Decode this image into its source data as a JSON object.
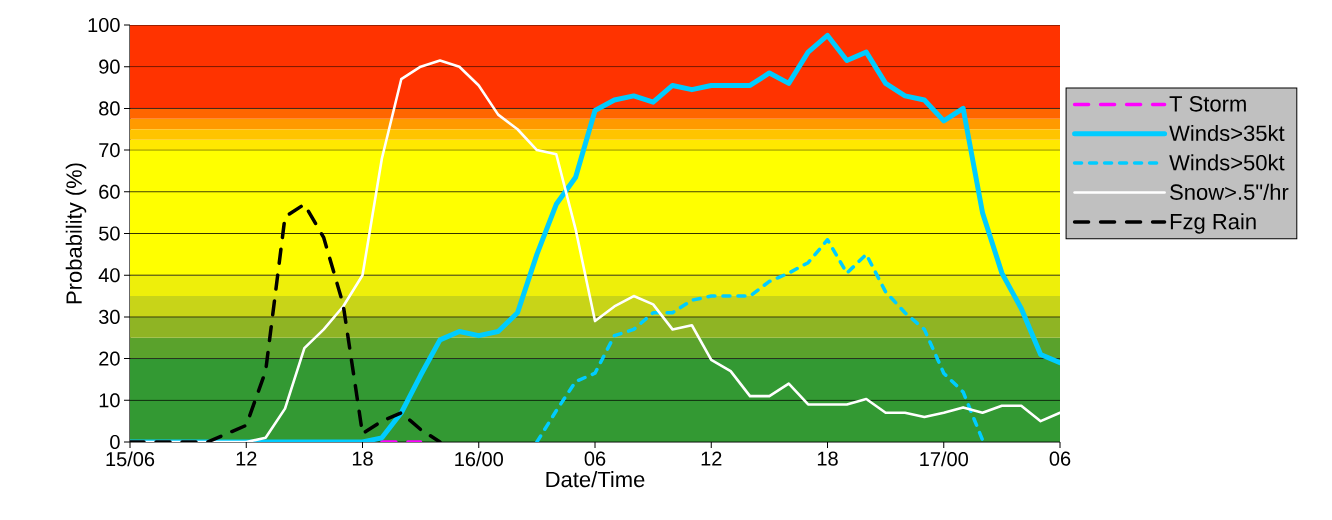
{
  "chart_data": {
    "type": "line",
    "xlabel": "Date/Time",
    "ylabel": "Probability (%)",
    "categories": [
      "15/06",
      null,
      null,
      null,
      null,
      null,
      "12",
      null,
      null,
      null,
      null,
      null,
      "18",
      null,
      null,
      null,
      null,
      null,
      "16/00",
      null,
      null,
      null,
      null,
      null,
      "06",
      null,
      null,
      null,
      null,
      null,
      "12",
      null,
      null,
      null,
      null,
      null,
      "18",
      null,
      null,
      null,
      null,
      null,
      "17/00",
      null,
      null,
      null,
      null,
      null,
      "06"
    ],
    "ylim": [
      0,
      100
    ],
    "yticks": [
      0,
      10,
      20,
      30,
      40,
      50,
      60,
      70,
      80,
      90,
      100
    ],
    "grid": "y",
    "legend": "right",
    "marker": "none",
    "bands": [
      {
        "axis": "y",
        "from": 0,
        "to": 20,
        "color": "#339933"
      },
      {
        "axis": "y",
        "from": 20,
        "to": 25,
        "color": "#5aa22c"
      },
      {
        "axis": "y",
        "from": 25,
        "to": 30,
        "color": "#8fb424"
      },
      {
        "axis": "y",
        "from": 30,
        "to": 35,
        "color": "#c8d418"
      },
      {
        "axis": "y",
        "from": 35,
        "to": 40,
        "color": "#eeef0a"
      },
      {
        "axis": "y",
        "from": 40,
        "to": 70,
        "color": "#ffff00"
      },
      {
        "axis": "y",
        "from": 70,
        "to": 72.5,
        "color": "#ffe800"
      },
      {
        "axis": "y",
        "from": 72.5,
        "to": 75,
        "color": "#ffc400"
      },
      {
        "axis": "y",
        "from": 75,
        "to": 77.5,
        "color": "#ff9a00"
      },
      {
        "axis": "y",
        "from": 77.5,
        "to": 80,
        "color": "#ff6600"
      },
      {
        "axis": "y",
        "from": 80,
        "to": 100,
        "color": "#ff3300"
      }
    ],
    "series": [
      {
        "name": "T Storm",
        "color": "#ff00ff",
        "line_style": "dashed",
        "values": [
          null,
          null,
          null,
          null,
          null,
          null,
          null,
          null,
          null,
          null,
          null,
          null,
          null,
          0,
          0,
          0,
          null,
          null,
          null,
          null,
          null,
          null,
          null,
          null,
          null,
          null,
          null,
          null,
          null,
          null,
          null,
          null,
          null,
          null,
          null,
          null,
          null,
          null,
          null,
          null,
          null,
          null,
          null,
          null,
          null,
          null,
          null,
          null,
          null
        ]
      },
      {
        "name": "Winds>35kt",
        "color": "#00ccff",
        "line_style": "solid",
        "values": [
          0,
          0,
          0,
          0,
          0,
          0,
          0,
          0,
          0,
          0,
          0,
          0,
          0,
          1,
          7,
          16,
          24.5,
          26.5,
          25.5,
          26.5,
          31,
          45,
          57,
          63.5,
          79.5,
          82,
          83,
          81.5,
          85.5,
          84.5,
          85.5,
          85.5,
          85.5,
          88.5,
          86,
          93.5,
          97.5,
          91.5,
          93.5,
          86,
          83,
          82,
          77,
          80,
          55,
          40.5,
          32,
          21,
          19
        ]
      },
      {
        "name": "Winds>50kt",
        "color": "#00ccff",
        "line_style": "dotted",
        "values": [
          null,
          null,
          null,
          null,
          null,
          null,
          null,
          null,
          null,
          null,
          null,
          null,
          null,
          null,
          null,
          null,
          null,
          null,
          null,
          null,
          null,
          0,
          7.5,
          14.5,
          16.5,
          25.5,
          27,
          31,
          31,
          34,
          35,
          35,
          35,
          38.5,
          40.5,
          43,
          48.5,
          40.5,
          45,
          36,
          31,
          27,
          16.5,
          12,
          0.5,
          null,
          null,
          null,
          null
        ]
      },
      {
        "name": "Snow>.5\"/hr",
        "color": "#ffffff",
        "line_style": "solid",
        "values": [
          0,
          0,
          0,
          0,
          0,
          0,
          0,
          1,
          8,
          22.5,
          27,
          32.5,
          40,
          68,
          87,
          90,
          91.5,
          90,
          85.5,
          78.5,
          75,
          70,
          69,
          51,
          29,
          32.5,
          35,
          33,
          27,
          28,
          19.7,
          17,
          11,
          11,
          14,
          9,
          9,
          9,
          10.3,
          7,
          7,
          6,
          7,
          8.3,
          7,
          8.7,
          8.7,
          5,
          7
        ]
      },
      {
        "name": "Fzg Rain",
        "color": "#000000",
        "line_style": "dashed",
        "values": [
          0,
          0,
          0,
          0,
          0,
          2,
          4,
          17,
          54,
          57,
          49,
          33,
          2,
          5,
          7,
          3,
          0,
          null,
          null,
          null,
          null,
          null,
          null,
          null,
          null,
          null,
          null,
          null,
          null,
          null,
          null,
          null,
          null,
          null,
          null,
          null,
          null,
          null,
          null,
          null,
          null,
          null,
          null,
          null,
          null,
          null,
          null,
          null,
          null
        ]
      }
    ]
  }
}
